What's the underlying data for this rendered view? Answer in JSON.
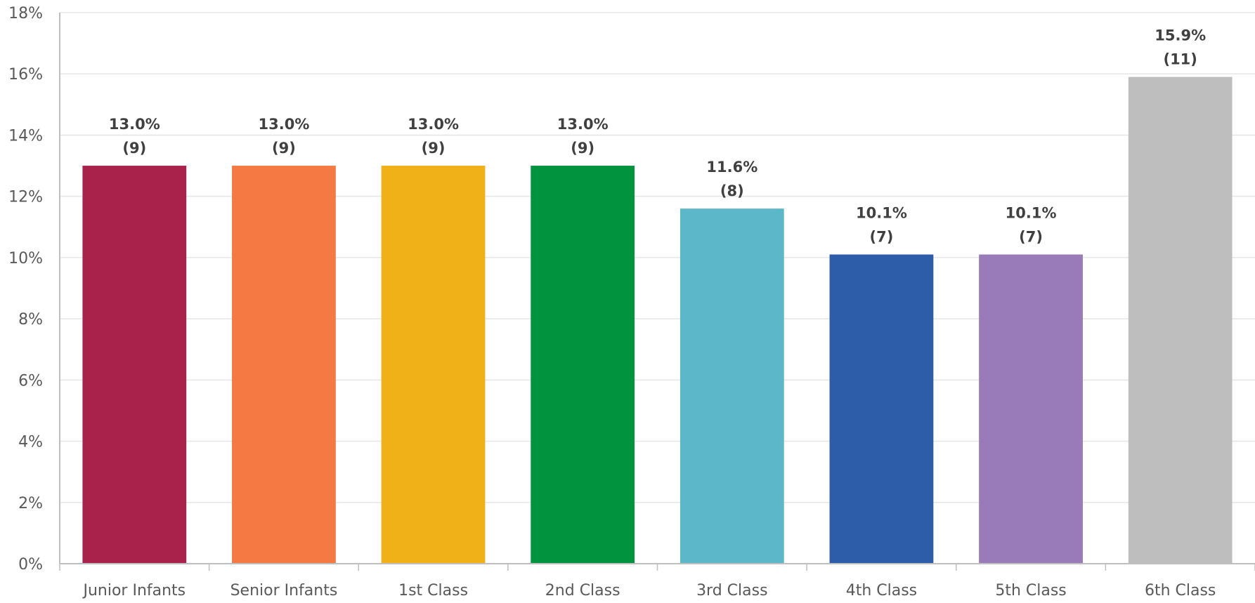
{
  "chart_data": {
    "type": "bar",
    "title": "",
    "xlabel": "",
    "ylabel": "",
    "ylim": [
      0,
      18
    ],
    "yticks": [
      0,
      2,
      4,
      6,
      8,
      10,
      12,
      14,
      16,
      18
    ],
    "ytick_suffix": "%",
    "grid": true,
    "categories": [
      "Junior Infants",
      "Senior Infants",
      "1st Class",
      "2nd Class",
      "3rd Class",
      "4th Class",
      "5th Class",
      "6th Class"
    ],
    "values": [
      13.0,
      13.0,
      13.0,
      13.0,
      11.6,
      10.1,
      10.1,
      15.9
    ],
    "counts": [
      9,
      9,
      9,
      9,
      8,
      7,
      7,
      11
    ],
    "value_labels": [
      "13.0%",
      "13.0%",
      "13.0%",
      "13.0%",
      "11.6%",
      "10.1%",
      "10.1%",
      "15.9%"
    ],
    "count_labels": [
      "(9)",
      "(9)",
      "(9)",
      "(9)",
      "(8)",
      "(7)",
      "(7)",
      "(11)"
    ],
    "colors": [
      "#a9224b",
      "#f47942",
      "#f0b118",
      "#02933f",
      "#5cb8c8",
      "#2d5da8",
      "#9a7bb9",
      "#bebebe"
    ]
  }
}
